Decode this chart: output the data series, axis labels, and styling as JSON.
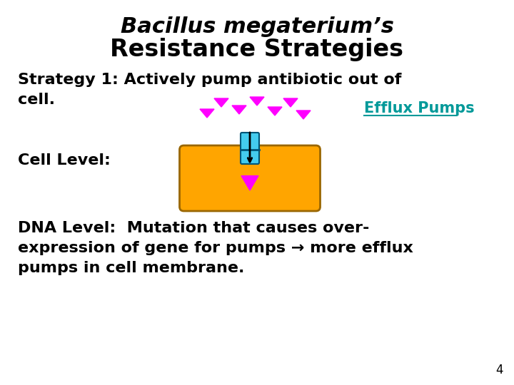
{
  "title_line1": "Bacillus megaterium’s",
  "title_line2": "Resistance Strategies",
  "strategy_line1": "Strategy 1: Actively pump antibiotic out of",
  "strategy_line2": "cell.",
  "cell_level_text": "Cell Level:",
  "efflux_pumps_text": "Efflux Pumps",
  "dna_level_text": "DNA Level:  Mutation that causes over-\nexpression of gene for pumps → more efflux\npumps in cell membrane.",
  "page_number": "4",
  "bg_color": "#ffffff",
  "text_color": "#000000",
  "efflux_link_color": "#009999",
  "cell_fill_color": "#FFA500",
  "cell_edge_color": "#996600",
  "pump_fill_color": "#44CCEE",
  "pump_edge_color": "#005577",
  "arrow_color": "#FF00FF",
  "title1_fontsize": 22,
  "title2_fontsize": 24,
  "body_fontsize": 16,
  "page_fontsize": 12,
  "efflux_fontsize": 15
}
